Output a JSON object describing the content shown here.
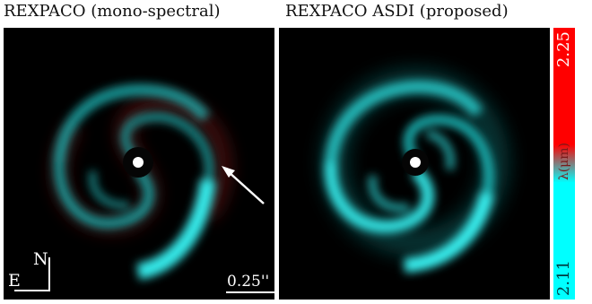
{
  "titles": {
    "left": "REXPACO (mono-spectral)",
    "right": "REXPACO ASDI (proposed)"
  },
  "left_panel": {
    "compass_north": "N",
    "compass_east": "E",
    "scale_label": "0.25''"
  },
  "colorbar": {
    "top_label": "2.25",
    "middle_label": "λ(μm)",
    "bottom_label": "2.11",
    "top_color": "#ff0000",
    "bottom_color": "#00ffff"
  },
  "colors": {
    "disk": "#33e6e6",
    "disk_red_tint": "#7a2020",
    "background": "#000000",
    "mask": "#ffffff"
  }
}
